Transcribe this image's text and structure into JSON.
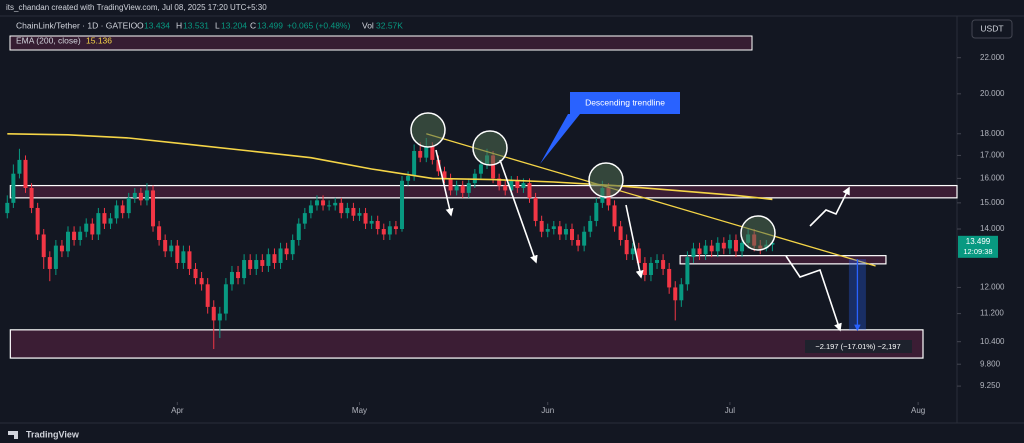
{
  "chart_data": {
    "type": "candlestick",
    "credit": "its_chandan created with TradingView.com, Jul 08, 2025 17:20 UTC+5:30",
    "symbol": "ChainLink/Tether · 1D · GATEIO",
    "ohlc_labels": [
      "O",
      "H",
      "L",
      "C"
    ],
    "change": "+0.065 (+0.48%)",
    "volume_label": "Vol",
    "volume": "32.57K",
    "indicator": "EMA (200, close)",
    "currency": "USDT",
    "countdown": "12:09:38",
    "footer": "TradingView",
    "log_scale": true,
    "up_color": "#089981",
    "down_color": "#f23645",
    "ylim": [
      8.87,
      24.3
    ],
    "yticks": [
      {
        "value": 22,
        "label": "22.000"
      },
      {
        "value": 20,
        "label": "20.000"
      },
      {
        "value": 18,
        "label": "18.000"
      },
      {
        "value": 17,
        "label": "17.000"
      },
      {
        "value": 16,
        "label": "16.000"
      },
      {
        "value": 15,
        "label": "15.000"
      },
      {
        "value": 14,
        "label": "14.000"
      },
      {
        "value": 12,
        "label": "12.000"
      },
      {
        "value": 11.2,
        "label": "11.200"
      },
      {
        "value": 10.4,
        "label": "10.400"
      },
      {
        "value": 9.8,
        "label": "9.800"
      },
      {
        "value": 9.25,
        "label": "9.250"
      }
    ],
    "xlim": [
      -1.2,
      156.4
    ],
    "xticks": [
      {
        "value": 28,
        "label": "Apr"
      },
      {
        "value": 58,
        "label": "May"
      },
      {
        "value": 89,
        "label": "Jun"
      },
      {
        "value": 119,
        "label": "Jul"
      },
      {
        "value": 150,
        "label": "Aug"
      }
    ],
    "candles": [
      [
        14.6,
        15.3,
        14.4,
        15.0
      ],
      [
        15.0,
        16.6,
        14.8,
        16.2
      ],
      [
        16.2,
        17.3,
        16.0,
        16.8
      ],
      [
        16.8,
        17.0,
        15.4,
        15.6
      ],
      [
        15.6,
        15.8,
        14.6,
        14.8
      ],
      [
        14.8,
        15.0,
        13.6,
        13.8
      ],
      [
        13.8,
        14.0,
        12.6,
        13.0
      ],
      [
        13.0,
        13.2,
        12.2,
        12.6
      ],
      [
        12.6,
        13.6,
        12.4,
        13.4
      ],
      [
        13.4,
        13.6,
        13.0,
        13.2
      ],
      [
        13.2,
        14.1,
        13.0,
        13.9
      ],
      [
        13.9,
        14.1,
        13.4,
        13.6
      ],
      [
        13.6,
        14.1,
        13.4,
        13.9
      ],
      [
        13.9,
        14.4,
        13.7,
        14.2
      ],
      [
        14.2,
        14.4,
        13.6,
        13.8
      ],
      [
        13.8,
        14.8,
        13.6,
        14.6
      ],
      [
        14.6,
        14.8,
        14.0,
        14.2
      ],
      [
        14.2,
        14.6,
        14.0,
        14.4
      ],
      [
        14.4,
        15.1,
        14.2,
        14.9
      ],
      [
        14.9,
        15.1,
        14.4,
        14.6
      ],
      [
        14.6,
        15.4,
        14.4,
        15.2
      ],
      [
        15.2,
        15.6,
        15.0,
        15.4
      ],
      [
        15.4,
        15.6,
        14.9,
        15.1
      ],
      [
        15.1,
        15.8,
        14.9,
        15.5
      ],
      [
        15.5,
        15.7,
        13.9,
        14.1
      ],
      [
        14.1,
        14.3,
        13.4,
        13.6
      ],
      [
        13.6,
        13.8,
        13.0,
        13.2
      ],
      [
        13.2,
        13.6,
        13.0,
        13.4
      ],
      [
        13.4,
        13.6,
        12.6,
        12.8
      ],
      [
        12.8,
        13.4,
        12.6,
        13.2
      ],
      [
        13.2,
        13.4,
        12.4,
        12.6
      ],
      [
        12.6,
        12.8,
        12.1,
        12.3
      ],
      [
        12.3,
        12.5,
        11.9,
        12.1
      ],
      [
        12.1,
        12.3,
        11.2,
        11.4
      ],
      [
        11.4,
        11.6,
        10.2,
        11.0
      ],
      [
        11.0,
        11.4,
        10.5,
        11.2
      ],
      [
        11.2,
        12.3,
        11.0,
        12.1
      ],
      [
        12.1,
        12.7,
        11.9,
        12.5
      ],
      [
        12.5,
        12.7,
        12.1,
        12.3
      ],
      [
        12.3,
        13.1,
        12.1,
        12.9
      ],
      [
        12.9,
        13.1,
        12.4,
        12.6
      ],
      [
        12.6,
        13.1,
        12.4,
        12.9
      ],
      [
        12.9,
        13.1,
        12.5,
        12.7
      ],
      [
        12.7,
        13.3,
        12.5,
        13.1
      ],
      [
        13.1,
        13.3,
        12.6,
        12.8
      ],
      [
        12.8,
        13.5,
        12.6,
        13.3
      ],
      [
        13.3,
        13.5,
        12.9,
        13.1
      ],
      [
        13.1,
        13.8,
        12.9,
        13.6
      ],
      [
        13.6,
        14.4,
        13.4,
        14.2
      ],
      [
        14.2,
        14.8,
        14.0,
        14.6
      ],
      [
        14.6,
        15.1,
        14.4,
        14.9
      ],
      [
        14.9,
        15.3,
        14.7,
        15.1
      ],
      [
        15.1,
        15.3,
        14.7,
        14.9
      ],
      [
        14.9,
        15.1,
        14.7,
        14.9
      ],
      [
        14.9,
        15.2,
        14.7,
        15.0
      ],
      [
        15.0,
        15.2,
        14.4,
        14.6
      ],
      [
        14.6,
        15.0,
        14.4,
        14.8
      ],
      [
        14.8,
        15.0,
        14.3,
        14.5
      ],
      [
        14.5,
        14.8,
        14.3,
        14.6
      ],
      [
        14.6,
        14.8,
        14.0,
        14.2
      ],
      [
        14.2,
        14.5,
        14.0,
        14.3
      ],
      [
        14.3,
        14.5,
        13.8,
        14.0
      ],
      [
        14.0,
        14.2,
        13.6,
        13.8
      ],
      [
        13.8,
        14.3,
        13.6,
        14.1
      ],
      [
        14.1,
        14.3,
        13.8,
        14.0
      ],
      [
        14.0,
        16.1,
        13.9,
        15.9
      ],
      [
        15.9,
        16.3,
        15.7,
        16.1
      ],
      [
        16.1,
        17.5,
        15.9,
        17.2
      ],
      [
        17.2,
        17.6,
        16.7,
        16.9
      ],
      [
        16.9,
        17.8,
        16.7,
        17.4
      ],
      [
        17.4,
        17.6,
        16.6,
        16.8
      ],
      [
        16.8,
        17.0,
        16.1,
        16.3
      ],
      [
        16.3,
        16.5,
        15.8,
        16.0
      ],
      [
        16.0,
        16.2,
        15.3,
        15.5
      ],
      [
        15.5,
        15.9,
        15.3,
        15.7
      ],
      [
        15.7,
        15.9,
        15.2,
        15.4
      ],
      [
        15.4,
        16.0,
        15.2,
        15.8
      ],
      [
        15.8,
        16.4,
        15.6,
        16.2
      ],
      [
        16.2,
        16.8,
        16.0,
        16.6
      ],
      [
        16.6,
        17.3,
        16.4,
        17.0
      ],
      [
        17.0,
        17.2,
        15.8,
        16.0
      ],
      [
        16.0,
        16.2,
        15.5,
        15.7
      ],
      [
        15.7,
        15.9,
        15.3,
        15.5
      ],
      [
        15.5,
        16.1,
        15.3,
        15.9
      ],
      [
        15.9,
        16.1,
        15.4,
        15.6
      ],
      [
        15.6,
        16.0,
        15.4,
        15.8
      ],
      [
        15.8,
        16.0,
        15.0,
        15.2
      ],
      [
        15.2,
        15.4,
        14.1,
        14.3
      ],
      [
        14.3,
        14.5,
        13.7,
        13.9
      ],
      [
        13.9,
        14.2,
        13.7,
        14.0
      ],
      [
        14.0,
        14.3,
        13.8,
        14.1
      ],
      [
        14.1,
        14.3,
        13.6,
        13.8
      ],
      [
        13.8,
        14.2,
        13.6,
        14.0
      ],
      [
        14.0,
        14.2,
        13.4,
        13.6
      ],
      [
        13.6,
        13.8,
        13.2,
        13.4
      ],
      [
        13.4,
        14.1,
        13.2,
        13.9
      ],
      [
        13.9,
        14.5,
        13.7,
        14.3
      ],
      [
        14.3,
        15.2,
        14.1,
        15.0
      ],
      [
        15.0,
        15.9,
        14.8,
        15.6
      ],
      [
        15.6,
        15.8,
        14.7,
        14.9
      ],
      [
        14.9,
        15.1,
        13.9,
        14.1
      ],
      [
        14.1,
        14.3,
        13.4,
        13.6
      ],
      [
        13.6,
        13.8,
        12.9,
        13.1
      ],
      [
        13.1,
        13.5,
        12.9,
        13.3
      ],
      [
        13.3,
        13.5,
        12.6,
        12.8
      ],
      [
        12.8,
        13.0,
        12.2,
        12.4
      ],
      [
        12.4,
        13.0,
        12.2,
        12.8
      ],
      [
        12.8,
        13.1,
        12.6,
        12.9
      ],
      [
        12.9,
        13.1,
        12.4,
        12.6
      ],
      [
        12.6,
        12.8,
        11.8,
        12.0
      ],
      [
        12.0,
        12.2,
        11.0,
        11.6
      ],
      [
        11.6,
        12.3,
        11.4,
        12.1
      ],
      [
        12.1,
        13.2,
        11.9,
        13.0
      ],
      [
        13.0,
        13.5,
        12.8,
        13.3
      ],
      [
        13.3,
        13.5,
        12.9,
        13.1
      ],
      [
        13.1,
        13.6,
        12.9,
        13.4
      ],
      [
        13.4,
        13.6,
        13.0,
        13.2
      ],
      [
        13.2,
        13.7,
        13.0,
        13.5
      ],
      [
        13.5,
        13.7,
        13.1,
        13.3
      ],
      [
        13.3,
        13.8,
        13.1,
        13.6
      ],
      [
        13.6,
        13.8,
        13.0,
        13.2
      ],
      [
        13.2,
        13.7,
        13.0,
        13.5
      ],
      [
        13.5,
        14.0,
        13.3,
        13.8
      ],
      [
        13.8,
        14.0,
        13.2,
        13.4
      ],
      [
        13.4,
        13.6,
        13.1,
        13.3
      ],
      [
        13.3,
        13.6,
        13.2,
        13.434
      ],
      [
        13.434,
        13.531,
        13.204,
        13.499
      ]
    ],
    "ema": {
      "color": "#f5d547",
      "x": [
        0,
        10,
        20,
        30,
        40,
        50,
        60,
        70,
        80,
        90,
        100,
        110,
        120,
        126
      ],
      "values": [
        18.0,
        17.95,
        17.8,
        17.5,
        17.2,
        16.9,
        16.4,
        16.0,
        15.95,
        15.85,
        15.7,
        15.5,
        15.3,
        15.136
      ]
    },
    "trendline": {
      "color": "#f5d547",
      "x": [
        69,
        143
      ],
      "values": [
        18.0,
        12.7
      ]
    },
    "zones": [
      {
        "x": [
          0.5,
          156.4
        ],
        "range": [
          15.2,
          15.7
        ]
      },
      {
        "x": [
          0.5,
          150.8
        ],
        "range": [
          9.96,
          10.73
        ]
      },
      {
        "x": [
          110.8,
          144.7
        ],
        "range": [
          12.77,
          13.05
        ]
      }
    ],
    "annotation": "Descending trendline",
    "measure": {
      "x": [
        138.6,
        141.4
      ],
      "from": 12.93,
      "to": 10.73,
      "label": "−2.197 (−17.01%) −2,197"
    }
  }
}
